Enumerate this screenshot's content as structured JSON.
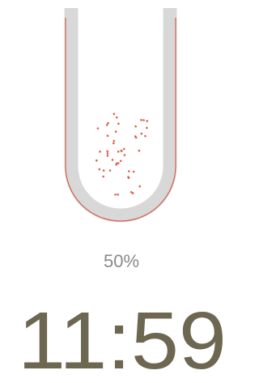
{
  "battery": {
    "label": "50%"
  },
  "clock": {
    "time": "11:59"
  }
}
